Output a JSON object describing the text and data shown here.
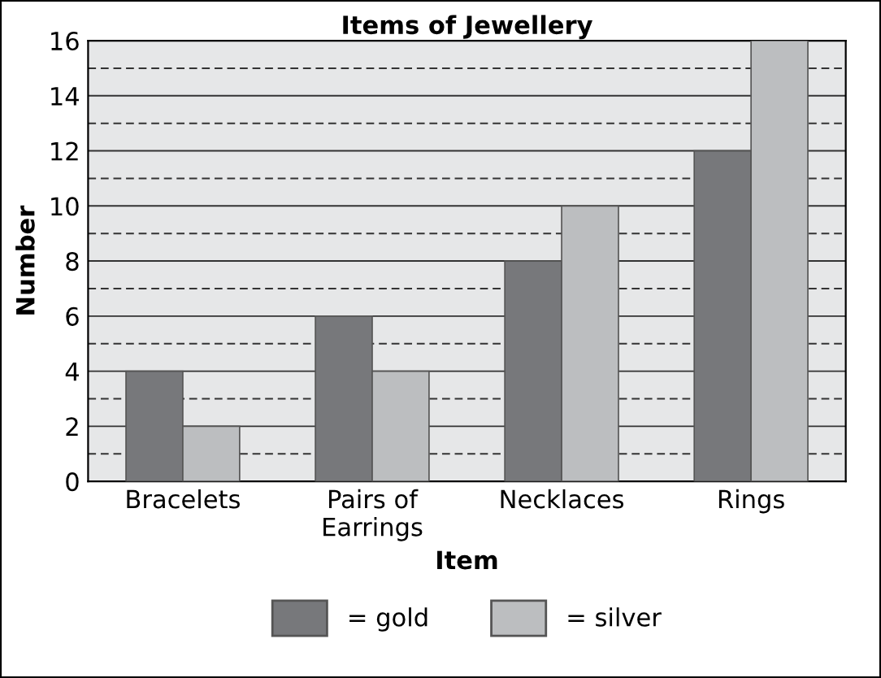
{
  "chart_data": {
    "type": "bar",
    "title": "Items of Jewellery",
    "xlabel": "Item",
    "ylabel": "Number",
    "categories": [
      "Bracelets",
      "Pairs of\nEarrings",
      "Necklaces",
      "Rings"
    ],
    "series": [
      {
        "name": "= gold",
        "color": "#77787b",
        "values": [
          4,
          6,
          8,
          12
        ]
      },
      {
        "name": "= silver",
        "color": "#bcbec0",
        "values": [
          2,
          4,
          10,
          16
        ]
      }
    ],
    "ylim": [
      0,
      16
    ],
    "yticks": [
      0,
      {
        "value": 1,
        "label": null
      },
      2,
      {
        "value": 3,
        "label": null
      },
      4,
      {
        "value": 5,
        "label": null
      },
      6,
      {
        "value": 7,
        "label": null
      },
      8,
      {
        "value": 9,
        "label": null
      },
      10,
      {
        "value": 11,
        "label": null
      },
      12,
      {
        "value": 13,
        "label": null
      },
      14,
      {
        "value": 15,
        "label": null
      },
      16
    ],
    "grid": "y",
    "legend": "bottom"
  }
}
